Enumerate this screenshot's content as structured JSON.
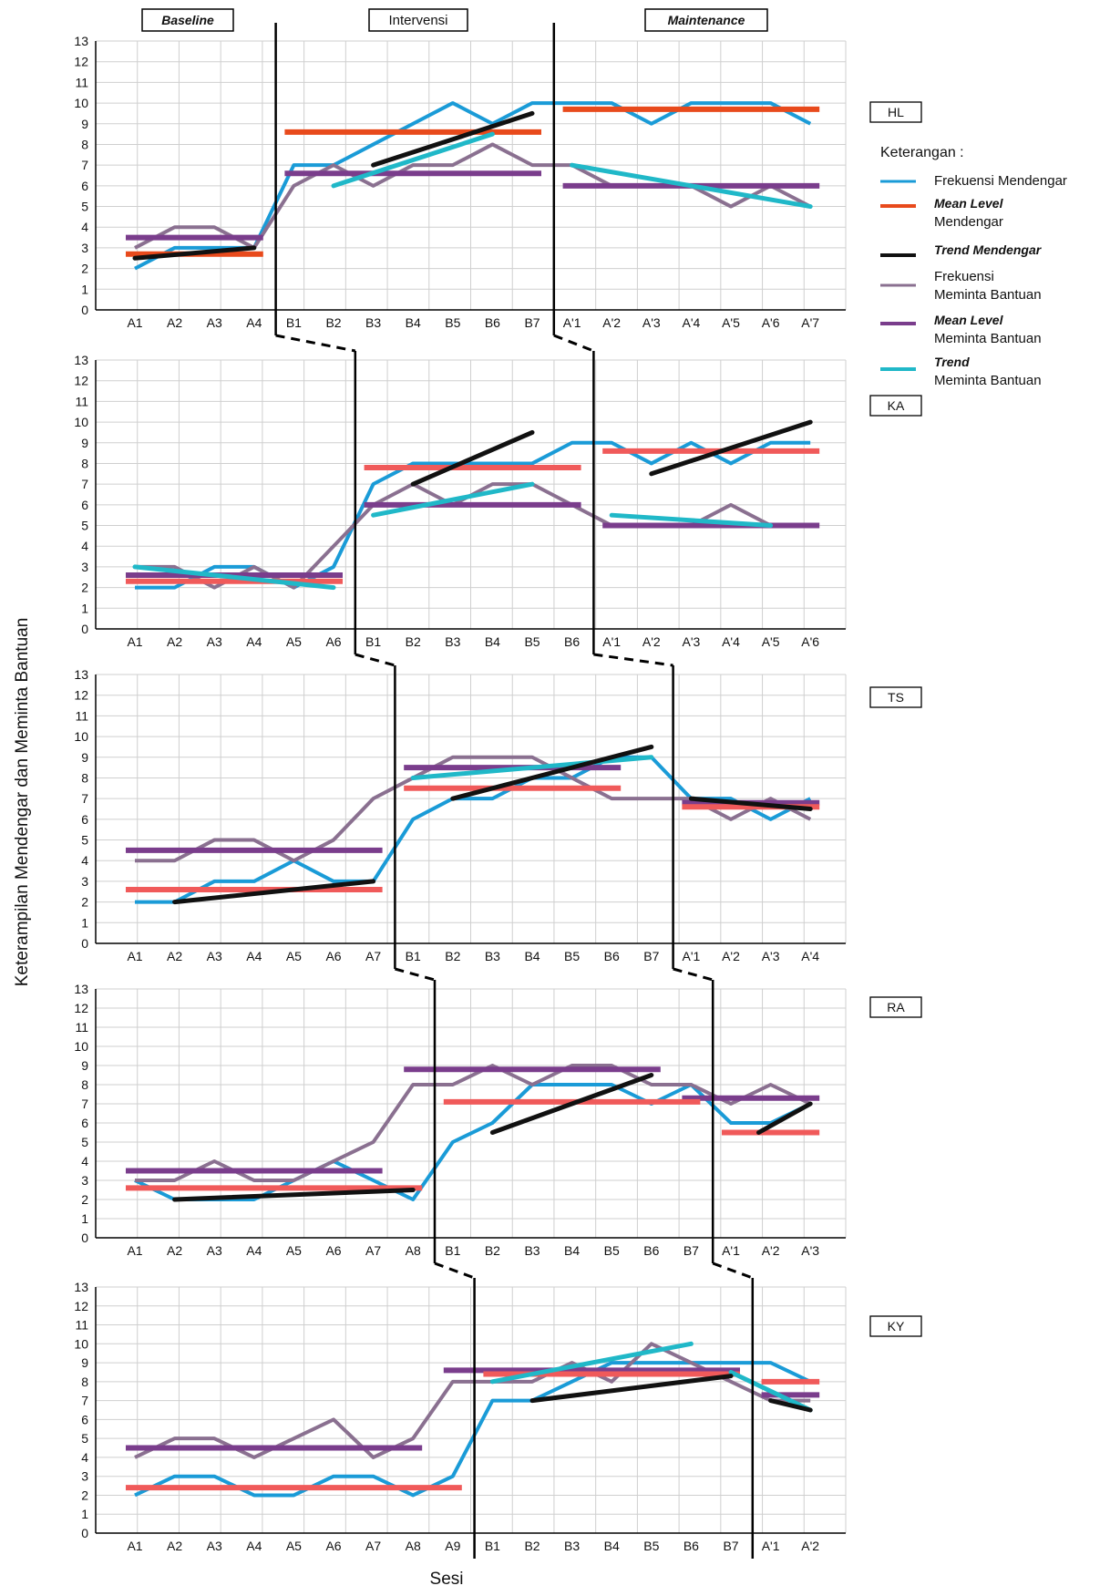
{
  "figure": {
    "ylabel": "Keterampilan Mendengar dan Meminta Bantuan",
    "xlabel": "Sesi",
    "phase_labels": [
      "Baseline",
      "Intervensi",
      "Maintenance"
    ],
    "legend": {
      "title": "Keterangan :",
      "items": [
        {
          "id": "freq_listen",
          "label_bold": "",
          "label": "Frekuensi Mendengar",
          "color": "#1a9bd7"
        },
        {
          "id": "mean_listen",
          "label_bold": "Mean Level",
          "label": "Mendengar",
          "color": "#e84a1c"
        },
        {
          "id": "trend_listen",
          "label_bold": "Trend Mendengar",
          "label": "",
          "color": "#111111"
        },
        {
          "id": "freq_help",
          "label_bold": "",
          "label": "Frekuensi",
          "label2": "Meminta Bantuan",
          "color": "#8a7090"
        },
        {
          "id": "mean_help",
          "label_bold": "Mean Level",
          "label": "Meminta Bantuan",
          "color": "#7a3d8c"
        },
        {
          "id": "trend_help",
          "label_bold": "Trend",
          "label": "Meminta Bantuan",
          "color": "#20b8c8"
        }
      ]
    },
    "colors": {
      "listen": "#1a9bd7",
      "help": "#8a7090",
      "meanListen": "#e84a1c",
      "meanListenAlt": "#f05a5a",
      "meanHelp": "#7a3d8c",
      "trendListen": "#111111",
      "trendHelp": "#20b8c8",
      "grid": "#cfcfcf"
    }
  },
  "chart_data": [
    {
      "type": "line",
      "participant": "HL",
      "ylim": [
        0,
        13
      ],
      "yticks": [
        "0",
        "1",
        "2",
        "3",
        "4",
        "5",
        "6",
        "7",
        "8",
        "9",
        "10",
        "11",
        "12",
        "13"
      ],
      "x": [
        "A1",
        "A2",
        "A3",
        "A4",
        "B1",
        "B2",
        "B3",
        "B4",
        "B5",
        "B6",
        "B7",
        "A'1",
        "A'2",
        "A'3",
        "A'4",
        "A'5",
        "A'6",
        "A'7"
      ],
      "phase_boundaries": [
        4,
        11
      ],
      "series": [
        {
          "name": "Frekuensi Mendengar",
          "values": [
            2,
            3,
            3,
            3,
            7,
            7,
            8,
            9,
            10,
            9,
            10,
            10,
            10,
            9,
            10,
            10,
            10,
            9
          ]
        },
        {
          "name": "Frekuensi Meminta Bantuan",
          "values": [
            3,
            4,
            4,
            3,
            6,
            7,
            6,
            7,
            7,
            8,
            7,
            7,
            6,
            6,
            6,
            5,
            6,
            5
          ]
        }
      ],
      "mean_listen": [
        [
          1,
          4,
          2.7
        ],
        [
          5,
          11,
          8.6
        ],
        [
          12,
          18,
          9.7
        ]
      ],
      "mean_help": [
        [
          1,
          4,
          3.5
        ],
        [
          5,
          11,
          6.6
        ],
        [
          12,
          18,
          6
        ]
      ],
      "trend_listen": [
        [
          1,
          4,
          2.5,
          3
        ],
        [
          7,
          11,
          7,
          9.5
        ]
      ],
      "trend_help": [
        [
          6,
          10,
          6,
          8.5
        ],
        [
          12,
          18,
          7,
          5
        ]
      ]
    },
    {
      "type": "line",
      "participant": "KA",
      "ylim": [
        0,
        13
      ],
      "yticks": [
        "0",
        "1",
        "2",
        "3",
        "4",
        "5",
        "6",
        "7",
        "8",
        "9",
        "10",
        "11",
        "12",
        "13"
      ],
      "x": [
        "A1",
        "A2",
        "A3",
        "A4",
        "A5",
        "A6",
        "B1",
        "B2",
        "B3",
        "B4",
        "B5",
        "B6",
        "A'1",
        "A'2",
        "A'3",
        "A'4",
        "A'5",
        "A'6"
      ],
      "phase_boundaries": [
        6,
        12
      ],
      "series": [
        {
          "name": "Frekuensi Mendengar",
          "values": [
            2,
            2,
            3,
            3,
            2,
            3,
            7,
            8,
            8,
            8,
            8,
            9,
            9,
            8,
            9,
            8,
            9,
            9
          ]
        },
        {
          "name": "Frekuensi Meminta Bantuan",
          "values": [
            3,
            3,
            2,
            3,
            2,
            4,
            6,
            7,
            6,
            7,
            7,
            6,
            5,
            5,
            5,
            6,
            5,
            5
          ]
        }
      ],
      "mean_listen": [
        [
          1,
          6,
          2.3
        ],
        [
          7,
          12,
          7.8
        ],
        [
          13,
          18,
          8.6
        ]
      ],
      "mean_help": [
        [
          1,
          6,
          2.6
        ],
        [
          7,
          12,
          6
        ],
        [
          13,
          18,
          5
        ]
      ],
      "trend_listen": [
        [
          8,
          11,
          7,
          9.5
        ],
        [
          14,
          18,
          7.5,
          10
        ]
      ],
      "trend_help": [
        [
          1,
          6,
          3,
          2
        ],
        [
          7,
          11,
          5.5,
          7
        ],
        [
          13,
          17,
          5.5,
          5
        ]
      ]
    },
    {
      "type": "line",
      "participant": "TS",
      "ylim": [
        0,
        13
      ],
      "yticks": [
        "0",
        "1",
        "2",
        "3",
        "4",
        "5",
        "6",
        "7",
        "8",
        "9",
        "10",
        "11",
        "12",
        "13"
      ],
      "x": [
        "A1",
        "A2",
        "A3",
        "A4",
        "A5",
        "A6",
        "A7",
        "B1",
        "B2",
        "B3",
        "B4",
        "B5",
        "B6",
        "B7",
        "A'1",
        "A'2",
        "A'3",
        "A'4"
      ],
      "phase_boundaries": [
        7,
        14
      ],
      "series": [
        {
          "name": "Frekuensi Mendengar",
          "values": [
            2,
            2,
            3,
            3,
            4,
            3,
            3,
            6,
            7,
            7,
            8,
            8,
            9,
            9,
            7,
            7,
            6,
            7
          ]
        },
        {
          "name": "Frekuensi Meminta Bantuan",
          "values": [
            4,
            4,
            5,
            5,
            4,
            5,
            7,
            8,
            9,
            9,
            9,
            8,
            7,
            7,
            7,
            6,
            7,
            6
          ]
        }
      ],
      "mean_listen": [
        [
          1,
          7,
          2.6
        ],
        [
          8,
          13,
          7.5
        ],
        [
          15,
          18,
          6.6
        ]
      ],
      "mean_help": [
        [
          1,
          7,
          4.5
        ],
        [
          8,
          13,
          8.5
        ],
        [
          15,
          18,
          6.8
        ]
      ],
      "trend_listen": [
        [
          2,
          7,
          2,
          3
        ],
        [
          9,
          14,
          7,
          9.5
        ],
        [
          15,
          18,
          7,
          6.5
        ]
      ],
      "trend_help": [
        [
          8,
          14,
          8,
          9
        ]
      ]
    },
    {
      "type": "line",
      "participant": "RA",
      "ylim": [
        0,
        13
      ],
      "yticks": [
        "0",
        "1",
        "2",
        "3",
        "4",
        "5",
        "6",
        "7",
        "8",
        "9",
        "10",
        "11",
        "12",
        "13"
      ],
      "x": [
        "A1",
        "A2",
        "A3",
        "A4",
        "A5",
        "A6",
        "A7",
        "A8",
        "B1",
        "B2",
        "B3",
        "B4",
        "B5",
        "B6",
        "B7",
        "A'1",
        "A'2",
        "A'3"
      ],
      "phase_boundaries": [
        8,
        15
      ],
      "series": [
        {
          "name": "Frekuensi Mendengar",
          "values": [
            3,
            2,
            2,
            2,
            3,
            4,
            3,
            2,
            5,
            6,
            8,
            8,
            8,
            7,
            8,
            6,
            6,
            7
          ]
        },
        {
          "name": "Frekuensi Meminta Bantuan",
          "values": [
            3,
            3,
            4,
            3,
            3,
            4,
            5,
            8,
            8,
            9,
            8,
            9,
            9,
            8,
            8,
            7,
            8,
            7
          ]
        }
      ],
      "mean_listen": [
        [
          1,
          8,
          2.6
        ],
        [
          9,
          15,
          7.1
        ],
        [
          16,
          18,
          5.5
        ]
      ],
      "mean_help": [
        [
          1,
          7,
          3.5
        ],
        [
          8,
          14,
          8.8
        ],
        [
          15,
          18,
          7.3
        ]
      ],
      "trend_listen": [
        [
          2,
          8,
          2,
          2.5
        ],
        [
          10,
          14,
          5.5,
          8.5
        ],
        [
          16.7,
          18,
          5.5,
          7
        ]
      ],
      "trend_help": []
    },
    {
      "type": "line",
      "participant": "KY",
      "ylim": [
        0,
        13
      ],
      "yticks": [
        "0",
        "1",
        "2",
        "3",
        "4",
        "5",
        "6",
        "7",
        "8",
        "9",
        "10",
        "11",
        "12",
        "13"
      ],
      "x": [
        "A1",
        "A2",
        "A3",
        "A4",
        "A5",
        "A6",
        "A7",
        "A8",
        "A9",
        "B1",
        "B2",
        "B3",
        "B4",
        "B5",
        "B6",
        "B7",
        "A'1",
        "A'2"
      ],
      "phase_boundaries": [
        9,
        16
      ],
      "series": [
        {
          "name": "Frekuensi Mendengar",
          "values": [
            2,
            3,
            3,
            2,
            2,
            3,
            3,
            2,
            3,
            7,
            7,
            8,
            9,
            9,
            9,
            9,
            9,
            8
          ]
        },
        {
          "name": "Frekuensi Meminta Bantuan",
          "values": [
            4,
            5,
            5,
            4,
            5,
            6,
            4,
            5,
            8,
            8,
            8,
            9,
            8,
            10,
            9,
            8,
            7,
            7
          ]
        }
      ],
      "mean_listen": [
        [
          1,
          9,
          2.4
        ],
        [
          10,
          16,
          8.4
        ],
        [
          17,
          18,
          8
        ]
      ],
      "mean_help": [
        [
          1,
          8,
          4.5
        ],
        [
          9,
          16,
          8.6
        ],
        [
          17,
          18,
          7.3
        ]
      ],
      "trend_listen": [
        [
          11,
          16,
          7,
          8.3
        ],
        [
          17,
          18,
          7,
          6.5
        ]
      ],
      "trend_help": [
        [
          10,
          15,
          8,
          10
        ],
        [
          16,
          18,
          8.5,
          6.5
        ]
      ]
    }
  ]
}
